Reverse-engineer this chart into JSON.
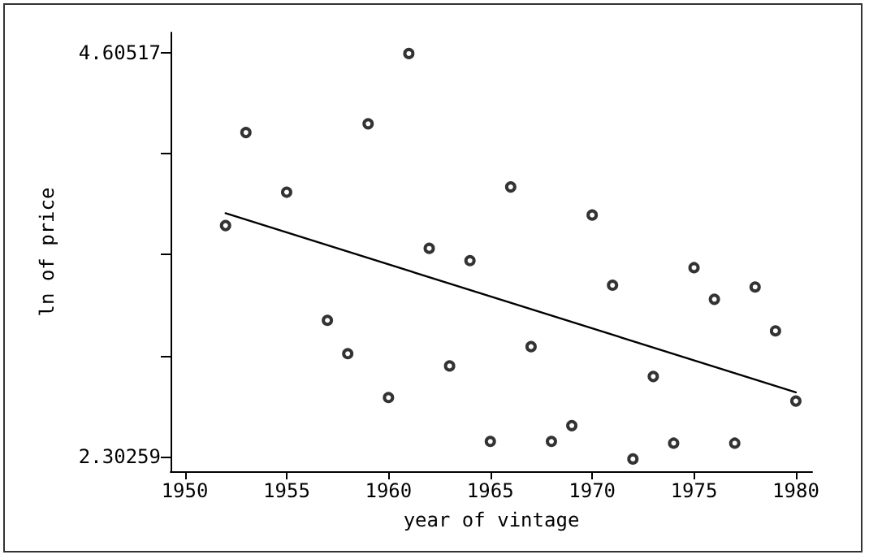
{
  "chart_data": {
    "type": "scatter",
    "xlabel": "year of vintage",
    "ylabel": "ln of price",
    "x": [
      1952,
      1953,
      1955,
      1957,
      1958,
      1959,
      1960,
      1961,
      1962,
      1963,
      1964,
      1965,
      1966,
      1967,
      1968,
      1969,
      1970,
      1971,
      1972,
      1973,
      1974,
      1975,
      1976,
      1977,
      1978,
      1979,
      1980
    ],
    "series": [
      {
        "color": "#000000",
        "marker": "circle",
        "values": [
          3.62,
          4.15,
          3.81,
          3.08,
          2.89,
          4.2,
          2.64,
          4.6,
          3.49,
          2.82,
          3.42,
          2.39,
          3.84,
          2.93,
          2.39,
          2.48,
          3.68,
          3.28,
          2.29,
          2.76,
          2.38,
          3.38,
          3.2,
          2.38,
          3.27,
          3.02,
          2.62
        ]
      },
      {
        "type": "line",
        "color": "#000000",
        "line_style": "solid",
        "marker": "none",
        "x": [
          1952,
          1980
        ],
        "values": [
          3.69,
          2.67
        ]
      }
    ],
    "xlim": [
      1949.3,
      1980.8
    ],
    "xticks": [
      1950,
      1955,
      1960,
      1965,
      1970,
      1975,
      1980
    ],
    "ylim": [
      2.22,
      4.72
    ],
    "yticks": [
      2.30259,
      {
        "value": 2.87824,
        "label": null
      },
      {
        "value": 3.45388,
        "label": null
      },
      {
        "value": 4.02953,
        "label": null
      },
      4.60517
    ],
    "grid": false
  }
}
